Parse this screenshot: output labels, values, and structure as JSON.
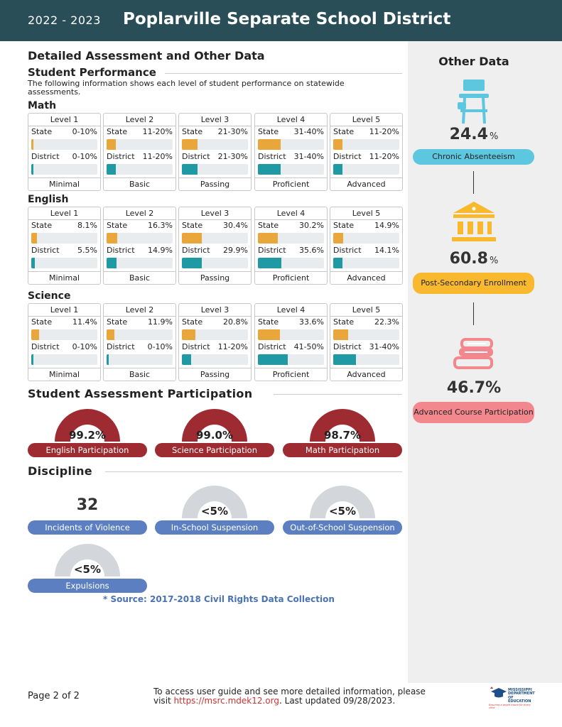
{
  "header": {
    "years": "2022 - 2023",
    "district": "Poplarville Separate School District"
  },
  "main": {
    "title": "Detailed Assessment and Other Data",
    "performance_heading": "Student Performance",
    "performance_intro": "The following information shows each level of student performance on statewide assessments."
  },
  "subjects": [
    {
      "name": "Math",
      "levels": [
        {
          "level": "Level 1",
          "state_label": "State",
          "state": "0-10%",
          "state_fill": 3,
          "district_label": "District",
          "district": "0-10%",
          "district_fill": 3,
          "desc": "Minimal"
        },
        {
          "level": "Level 2",
          "state_label": "State",
          "state": "11-20%",
          "state_fill": 14,
          "district_label": "District",
          "district": "11-20%",
          "district_fill": 14,
          "desc": "Basic"
        },
        {
          "level": "Level 3",
          "state_label": "State",
          "state": "21-30%",
          "state_fill": 24,
          "district_label": "District",
          "district": "21-30%",
          "district_fill": 24,
          "desc": "Passing"
        },
        {
          "level": "Level 4",
          "state_label": "State",
          "state": "31-40%",
          "state_fill": 34,
          "district_label": "District",
          "district": "31-40%",
          "district_fill": 34,
          "desc": "Proficient"
        },
        {
          "level": "Level 5",
          "state_label": "State",
          "state": "11-20%",
          "state_fill": 14,
          "district_label": "District",
          "district": "11-20%",
          "district_fill": 14,
          "desc": "Advanced"
        }
      ]
    },
    {
      "name": "English",
      "levels": [
        {
          "level": "Level 1",
          "state_label": "State",
          "state": "8.1%",
          "state_fill": 8.1,
          "district_label": "District",
          "district": "5.5%",
          "district_fill": 5.5,
          "desc": "Minimal"
        },
        {
          "level": "Level 2",
          "state_label": "State",
          "state": "16.3%",
          "state_fill": 16.3,
          "district_label": "District",
          "district": "14.9%",
          "district_fill": 14.9,
          "desc": "Basic"
        },
        {
          "level": "Level 3",
          "state_label": "State",
          "state": "30.4%",
          "state_fill": 30.4,
          "district_label": "District",
          "district": "29.9%",
          "district_fill": 29.9,
          "desc": "Passing"
        },
        {
          "level": "Level 4",
          "state_label": "State",
          "state": "30.2%",
          "state_fill": 30.2,
          "district_label": "District",
          "district": "35.6%",
          "district_fill": 35.6,
          "desc": "Proficient"
        },
        {
          "level": "Level 5",
          "state_label": "State",
          "state": "14.9%",
          "state_fill": 14.9,
          "district_label": "District",
          "district": "14.1%",
          "district_fill": 14.1,
          "desc": "Advanced"
        }
      ]
    },
    {
      "name": "Science",
      "levels": [
        {
          "level": "Level 1",
          "state_label": "State",
          "state": "11.4%",
          "state_fill": 11.4,
          "district_label": "District",
          "district": "0-10%",
          "district_fill": 3,
          "desc": "Minimal"
        },
        {
          "level": "Level 2",
          "state_label": "State",
          "state": "11.9%",
          "state_fill": 11.9,
          "district_label": "District",
          "district": "0-10%",
          "district_fill": 3,
          "desc": "Basic"
        },
        {
          "level": "Level 3",
          "state_label": "State",
          "state": "20.8%",
          "state_fill": 20.8,
          "district_label": "District",
          "district": "11-20%",
          "district_fill": 14,
          "desc": "Passing"
        },
        {
          "level": "Level 4",
          "state_label": "State",
          "state": "33.6%",
          "state_fill": 33.6,
          "district_label": "District",
          "district": "41-50%",
          "district_fill": 45,
          "desc": "Proficient"
        },
        {
          "level": "Level 5",
          "state_label": "State",
          "state": "22.3%",
          "state_fill": 22.3,
          "district_label": "District",
          "district": "31-40%",
          "district_fill": 34,
          "desc": "Advanced"
        }
      ]
    }
  ],
  "participation": {
    "heading": "Student Assessment Participation",
    "color": "#9e2b31",
    "items": [
      {
        "value": "99.2%",
        "label": "English Participation"
      },
      {
        "value": "99.0%",
        "label": "Science Participation"
      },
      {
        "value": "98.7%",
        "label": "Math Participation"
      }
    ]
  },
  "discipline": {
    "heading": "Discipline",
    "color": "#5b7fc1",
    "gauge_color": "#d3d6da",
    "violence": {
      "value": "32",
      "label": "Incidents of Violence"
    },
    "in_school": {
      "value": "<5%",
      "label": "In-School Suspension"
    },
    "out_school": {
      "value": "<5%",
      "label": "Out-of-School Suspension"
    },
    "expulsions": {
      "value": "<5%",
      "label": "Expulsions"
    },
    "source": "* Source: 2017-2018 Civil Rights Data Collection"
  },
  "other_data": {
    "title": "Other Data",
    "chronic": {
      "icon": "school-desk-icon",
      "value": "24.4",
      "unit": "%",
      "label": "Chronic Absenteeism",
      "color": "#5cc7df"
    },
    "postsec": {
      "icon": "university-building-icon",
      "value": "60.8",
      "unit": "%",
      "label": "Post-Secondary Enrollment",
      "color": "#f9b92e"
    },
    "advanced": {
      "icon": "books-icon",
      "value": "46.7%",
      "label": "Advanced Course Participation",
      "color": "#f2878d"
    }
  },
  "footer": {
    "page": "Page 2 of 2",
    "info_before": "To access user guide and see more detailed information, please visit ",
    "url": "https://msrc.mdek12.org",
    "info_after": ". Last updated 09/28/2023.",
    "logo_line1": "MISSISSIPPI",
    "logo_line2": "DEPARTMENT OF",
    "logo_line3": "EDUCATION",
    "logo_tagline": "Ensuring a bright future for every child"
  }
}
